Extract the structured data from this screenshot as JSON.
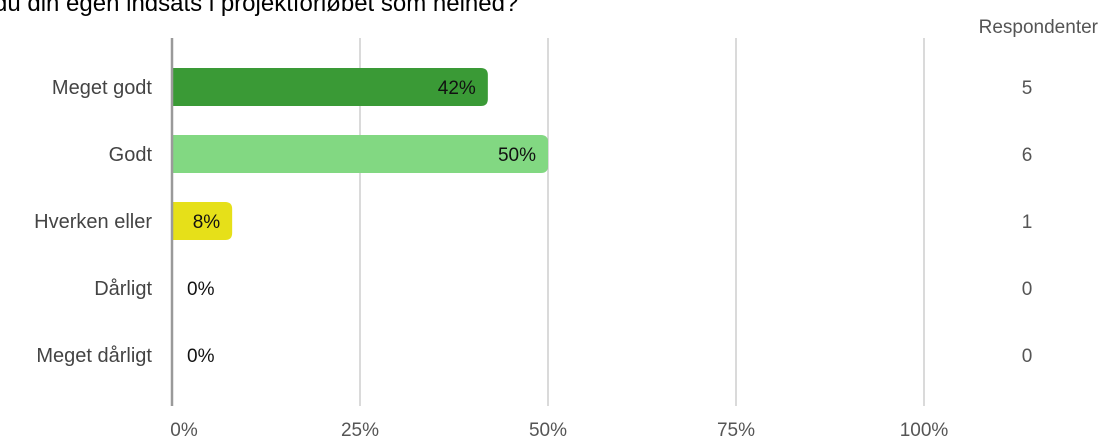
{
  "chart_data": {
    "type": "bar",
    "orientation": "horizontal",
    "title": "du din egen indsats i projektforløbet som helhed?",
    "categories": [
      "Meget godt",
      "Godt",
      "Hverken eller",
      "Dårligt",
      "Meget dårligt"
    ],
    "values": [
      42,
      50,
      8,
      0,
      0
    ],
    "value_labels": [
      "42%",
      "50%",
      "8%",
      "0%",
      "0%"
    ],
    "bar_colors": [
      "#3a9a36",
      "#82d882",
      "#e6e019",
      "#e0e0e0",
      "#e0e0e0"
    ],
    "count_header": "Respondenter",
    "counts": [
      "5",
      "6",
      "1",
      "0",
      "0"
    ],
    "x_ticks": [
      0,
      25,
      50,
      75,
      100
    ],
    "x_tick_labels": [
      "0%",
      "25%",
      "50%",
      "75%",
      "100%"
    ],
    "xlim": [
      0,
      100
    ],
    "grid": true,
    "legend": "none"
  }
}
